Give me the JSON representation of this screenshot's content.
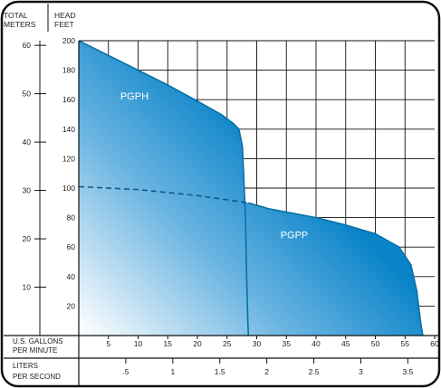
{
  "chart_data": {
    "type": "area",
    "header": {
      "left_axis_title": [
        "TOTAL",
        "METERS"
      ],
      "right_axis_title": [
        "HEAD",
        "FEET"
      ]
    },
    "meters_ticks": [
      "60",
      "50",
      "40",
      "30",
      "20",
      "10"
    ],
    "meters_values": [
      60,
      50,
      40,
      30,
      20,
      10
    ],
    "feet_ticks": [
      "200",
      "180",
      "160",
      "140",
      "120",
      "100",
      "80",
      "60",
      "40",
      "20"
    ],
    "feet_values": [
      200,
      180,
      160,
      140,
      120,
      100,
      80,
      60,
      40,
      20
    ],
    "gpm_axis": {
      "label": [
        "U.S. GALLONS",
        "PER MINUTE"
      ],
      "ticks": [
        "5",
        "10",
        "15",
        "20",
        "25",
        "30",
        "35",
        "40",
        "45",
        "50",
        "55",
        "60"
      ],
      "values": [
        5,
        10,
        15,
        20,
        25,
        30,
        35,
        40,
        45,
        50,
        55,
        60
      ],
      "range": [
        0,
        60
      ]
    },
    "lps_axis": {
      "label": [
        "LITERS",
        "PER SECOND"
      ],
      "ticks": [
        ".5",
        "1",
        "1.5",
        "2",
        "2.5",
        "3",
        "3.5"
      ],
      "values": [
        0.5,
        1,
        1.5,
        2,
        2.5,
        3,
        3.5
      ]
    },
    "ylim_feet": [
      0,
      200
    ],
    "series": [
      {
        "name": "PGPH",
        "color": "#0f88cc",
        "x": [
          0,
          5,
          10,
          15,
          20,
          24,
          26,
          27,
          27.6,
          28.1,
          28.3,
          28.5,
          28.6
        ],
        "y": [
          200,
          190,
          180,
          170,
          159,
          150,
          144,
          140,
          128,
          80,
          40,
          10,
          0
        ]
      },
      {
        "name": "PGPP",
        "color": "#0f88cc",
        "x": [
          0,
          10,
          20,
          28.6,
          32,
          40,
          45,
          50,
          54,
          56,
          57,
          57.6,
          58
        ],
        "y": [
          101,
          99,
          95,
          90,
          86,
          80,
          75,
          69,
          60,
          48,
          30,
          10,
          0
        ]
      }
    ],
    "grid": true
  }
}
